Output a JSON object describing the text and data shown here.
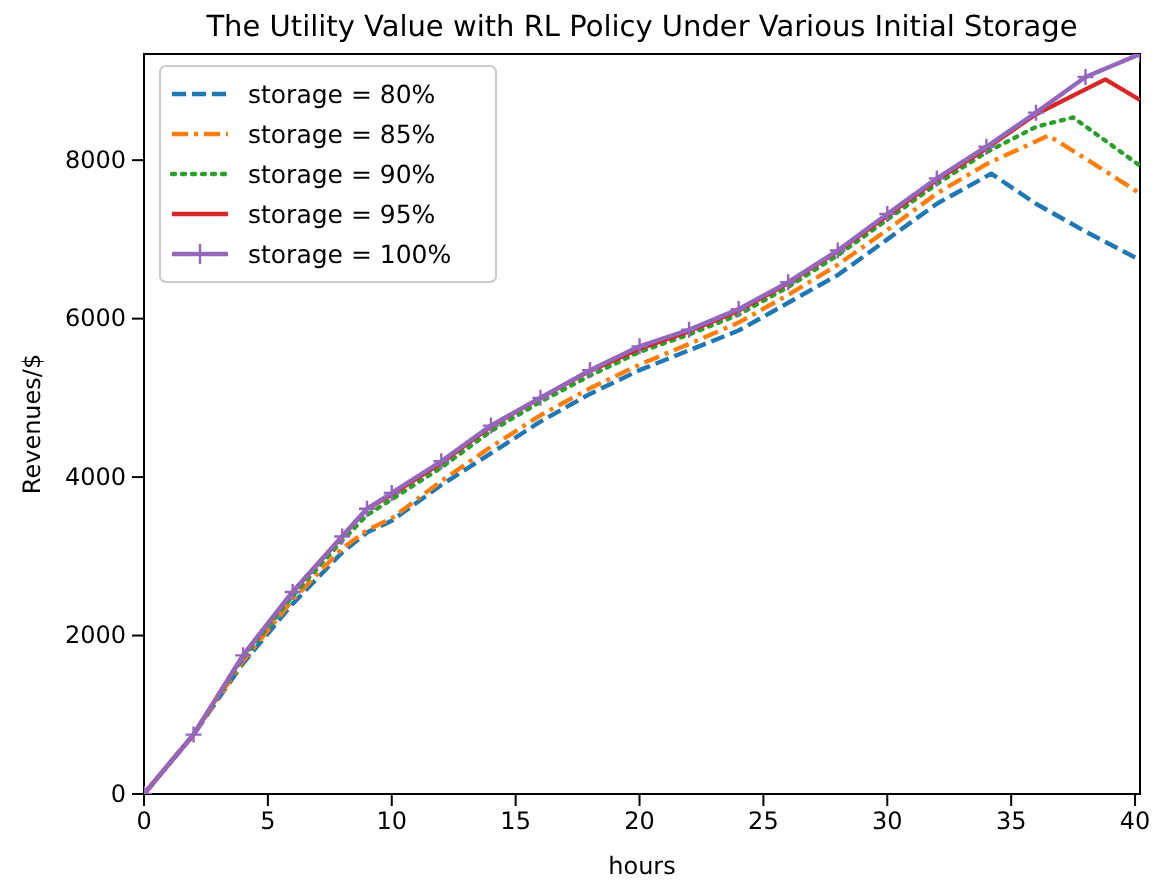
{
  "chart_data": {
    "type": "line",
    "title": "The Utility Value with RL Policy Under Various Initial Storage",
    "xlabel": "hours",
    "ylabel": "Revenues/$",
    "xlim": [
      0,
      40.2
    ],
    "ylim": [
      0,
      9340
    ],
    "xticks": [
      0,
      5,
      10,
      15,
      20,
      25,
      30,
      35,
      40
    ],
    "yticks": [
      0,
      2000,
      4000,
      6000,
      8000
    ],
    "legend": "top left",
    "grid": false,
    "series": [
      {
        "name": "storage = 80%",
        "color": "#1f77b4",
        "line_style": "dashed",
        "marker": "none",
        "x": [
          0,
          2,
          4,
          6,
          8,
          9,
          10,
          12,
          14,
          16,
          18,
          20,
          22,
          24,
          26,
          28,
          30,
          32,
          34.2,
          36,
          38,
          40.2
        ],
        "values": [
          0,
          750,
          1650,
          2400,
          3050,
          3300,
          3450,
          3900,
          4300,
          4700,
          5050,
          5350,
          5600,
          5850,
          6200,
          6550,
          7000,
          7450,
          7830,
          7450,
          7100,
          6740
        ]
      },
      {
        "name": "storage = 85%",
        "color": "#ff7f0e",
        "line_style": "dashdot",
        "marker": "none",
        "x": [
          0,
          2,
          4,
          6,
          8,
          9,
          10,
          12,
          14,
          16,
          18,
          20,
          22,
          24,
          26,
          28,
          30,
          32,
          34,
          36.5,
          38,
          40.2
        ],
        "values": [
          0,
          750,
          1680,
          2450,
          3100,
          3330,
          3480,
          3950,
          4380,
          4780,
          5120,
          5420,
          5680,
          5950,
          6300,
          6680,
          7120,
          7580,
          7950,
          8310,
          8020,
          7580
        ]
      },
      {
        "name": "storage = 90%",
        "color": "#2ca02c",
        "line_style": "dotted",
        "marker": "none",
        "x": [
          0,
          2,
          4,
          6,
          8,
          9,
          10,
          12,
          14,
          16,
          18,
          20,
          22,
          24,
          26,
          28,
          30,
          32,
          34,
          36,
          37.5,
          40.2
        ],
        "values": [
          0,
          750,
          1720,
          2500,
          3200,
          3520,
          3720,
          4120,
          4580,
          4950,
          5280,
          5580,
          5800,
          6050,
          6400,
          6800,
          7250,
          7700,
          8100,
          8420,
          8540,
          7930
        ]
      },
      {
        "name": "storage = 95%",
        "color": "#d62728",
        "line_style": "solid",
        "marker": "none",
        "x": [
          0,
          2,
          4,
          6,
          8,
          9,
          10,
          12,
          14,
          16,
          18,
          20,
          22,
          24,
          26,
          28,
          30,
          32,
          34,
          36,
          38.8,
          40.2
        ],
        "values": [
          0,
          750,
          1750,
          2550,
          3250,
          3600,
          3780,
          4180,
          4640,
          5000,
          5340,
          5620,
          5840,
          6100,
          6450,
          6850,
          7300,
          7750,
          8150,
          8580,
          9020,
          8760
        ]
      },
      {
        "name": "storage = 100%",
        "color": "#9467bd",
        "line_style": "solid",
        "marker": "cross",
        "x": [
          0,
          2,
          4,
          6,
          8,
          9,
          10,
          12,
          14,
          16,
          18,
          20,
          22,
          24,
          26,
          28,
          30,
          32,
          34,
          36,
          38,
          40.2
        ],
        "values": [
          0,
          750,
          1750,
          2550,
          3250,
          3600,
          3800,
          4200,
          4650,
          5000,
          5350,
          5650,
          5860,
          6120,
          6460,
          6860,
          7320,
          7770,
          8170,
          8600,
          9050,
          9340
        ]
      }
    ]
  }
}
